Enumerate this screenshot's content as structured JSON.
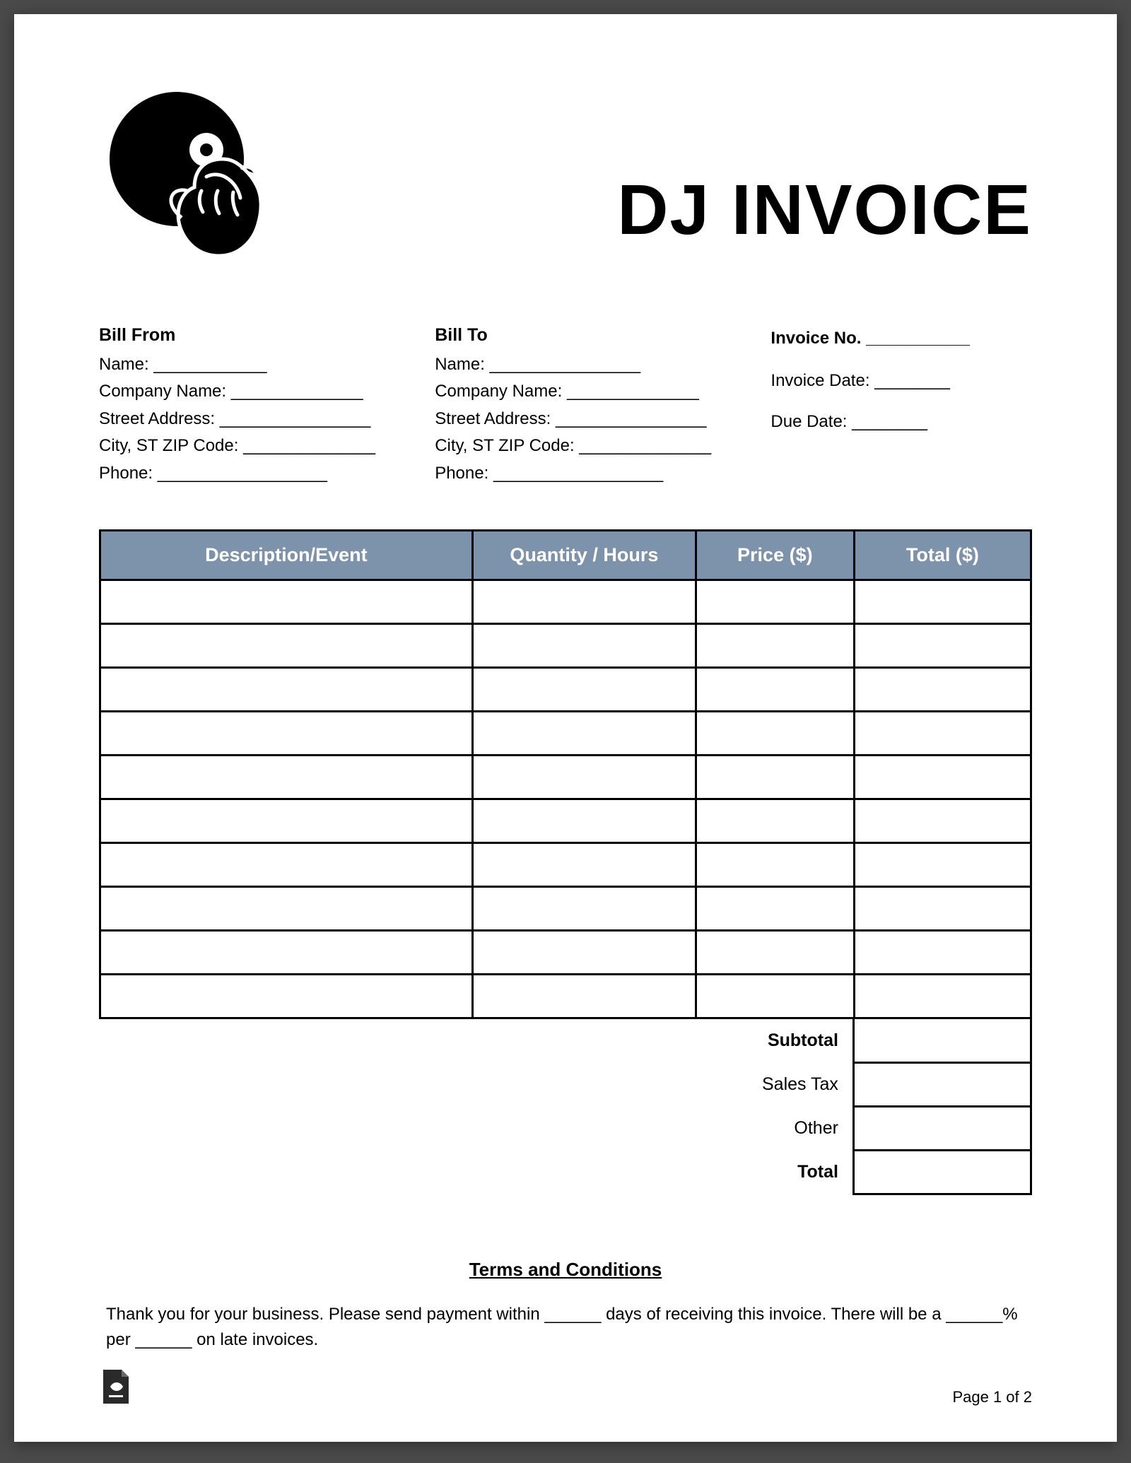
{
  "title": "DJ INVOICE",
  "bill_from": {
    "heading": "Bill From",
    "fields": {
      "name": "Name:",
      "company": "Company Name:",
      "street": "Street Address:",
      "city": "City, ST ZIP Code:",
      "phone": "Phone:"
    }
  },
  "bill_to": {
    "heading": "Bill To",
    "fields": {
      "name": "Name:",
      "company": "Company Name:",
      "street": "Street Address:",
      "city": "City, ST ZIP Code:",
      "phone": "Phone:"
    }
  },
  "invoice_meta": {
    "no_label": "Invoice No.",
    "date_label": "Invoice Date:",
    "due_label": "Due Date:"
  },
  "table": {
    "headers": {
      "desc": "Description/Event",
      "qty": "Quantity / Hours",
      "price": "Price ($)",
      "total": "Total ($)"
    },
    "row_count": 10,
    "header_bg": "#7d92ab",
    "header_fg": "#ffffff",
    "border_color": "#000000"
  },
  "totals": {
    "subtotal": "Subtotal",
    "sales_tax": "Sales Tax",
    "other": "Other",
    "total": "Total"
  },
  "terms": {
    "heading": "Terms and Conditions",
    "body": "Thank you for your business. Please send payment within ______ days of receiving this invoice. There will be a ______% per ______ on late invoices."
  },
  "footer": {
    "page": "Page 1 of 2"
  }
}
